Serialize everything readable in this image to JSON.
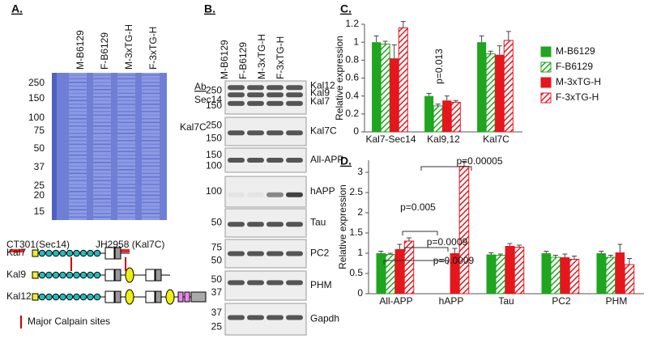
{
  "panel_a": {
    "label": "A.",
    "lanes": [
      "M-B6129",
      "F-B6129",
      "M-3xTG-H",
      "F-3xTG-H"
    ],
    "markers": [
      "250",
      "150",
      "100",
      "75",
      "50",
      "37",
      "25",
      "20",
      "15"
    ],
    "antibodies": [
      "CT301(Sec14)",
      "JH2958 (Kal7C)"
    ],
    "isoforms": [
      "Kal7",
      "Kal9",
      "Kal12"
    ],
    "calpain_note": "Major Calpain sites"
  },
  "panel_b": {
    "label": "B.",
    "lanes": [
      "M-B6129",
      "F-B6129",
      "M-3xTG-H",
      "F-3xTG-H"
    ],
    "ab_header": "Ab",
    "blots": [
      {
        "antibody": "Sec14",
        "markers": [
          "250",
          "150"
        ],
        "bands": [
          "Kal12",
          "Kal9",
          "Kal7"
        ]
      },
      {
        "antibody": "Kal7C",
        "markers": [
          "250",
          "150"
        ],
        "bands": [
          "Kal7C"
        ]
      },
      {
        "markers": [
          "150",
          "100"
        ],
        "bands": [
          "All-APP"
        ]
      },
      {
        "markers": [
          "100"
        ],
        "bands": [
          "hAPP"
        ]
      },
      {
        "markers": [
          "50"
        ],
        "bands": [
          "Tau"
        ]
      },
      {
        "markers": [
          "75",
          "50"
        ],
        "bands": [
          "PC2"
        ]
      },
      {
        "markers": [
          "50",
          "37"
        ],
        "bands": [
          "PHM"
        ]
      },
      {
        "markers": [
          "37",
          "25"
        ],
        "bands": [
          "Gapdh"
        ]
      }
    ]
  },
  "chart_data": [
    {
      "type": "bar",
      "panel_label": "C.",
      "y_label": "Relative expression",
      "categories": [
        "Kal7-Sec14",
        "Kal9,12",
        "Kal7C"
      ],
      "series": [
        {
          "name": "M-B6129",
          "color": "#1fa51f",
          "hatch": false,
          "values": [
            1.0,
            0.4,
            1.0
          ],
          "errors": [
            0.07,
            0.03,
            0.07
          ]
        },
        {
          "name": "F-B6129",
          "color": "#1fa51f",
          "hatch": true,
          "values": [
            0.98,
            0.29,
            0.87
          ],
          "errors": [
            0.03,
            0.02,
            0.03
          ]
        },
        {
          "name": "M-3xTG-H",
          "color": "#e5161c",
          "hatch": false,
          "values": [
            0.82,
            0.35,
            0.86
          ],
          "errors": [
            0.15,
            0.05,
            0.1
          ]
        },
        {
          "name": "F-3xTG-H",
          "color": "#e5161c",
          "hatch": true,
          "values": [
            1.16,
            0.33,
            1.02
          ],
          "errors": [
            0.07,
            0.02,
            0.1
          ]
        }
      ],
      "ylim": [
        0,
        1.2
      ],
      "yticks": [
        0,
        0.2,
        0.4,
        0.6,
        0.8,
        1,
        1.2
      ],
      "legend": "right",
      "annotations": [
        "p=0.013"
      ]
    },
    {
      "type": "bar",
      "panel_label": "D.",
      "y_label": "Relative expression",
      "categories": [
        "All-APP",
        "hAPP",
        "Tau",
        "PC2",
        "PHM"
      ],
      "series": [
        {
          "color": "#1fa51f",
          "hatch": false,
          "values": [
            1.0,
            0,
            0.97,
            1.0,
            1.0
          ],
          "errors": [
            0.05,
            0,
            0.04,
            0.05,
            0.05
          ]
        },
        {
          "color": "#1fa51f",
          "hatch": true,
          "values": [
            0.97,
            0,
            0.95,
            0.9,
            0.9
          ],
          "errors": [
            0.03,
            0,
            0.03,
            0.05,
            0.05
          ]
        },
        {
          "color": "#e5161c",
          "hatch": false,
          "values": [
            1.1,
            1.0,
            1.18,
            0.9,
            1.02
          ],
          "errors": [
            0.12,
            0.12,
            0.06,
            0.08,
            0.2
          ]
        },
        {
          "color": "#e5161c",
          "hatch": true,
          "values": [
            1.3,
            3.15,
            1.15,
            0.85,
            0.72
          ],
          "errors": [
            0.08,
            0.12,
            0.05,
            0.08,
            0.15
          ]
        }
      ],
      "ylim": [
        0,
        3.3
      ],
      "yticks": [
        0,
        0.5,
        1,
        1.5,
        2,
        2.5,
        3
      ],
      "annotations": [
        "p=0.005",
        "p=0.0009",
        "p=0.0009",
        "p=0.00005"
      ]
    }
  ]
}
